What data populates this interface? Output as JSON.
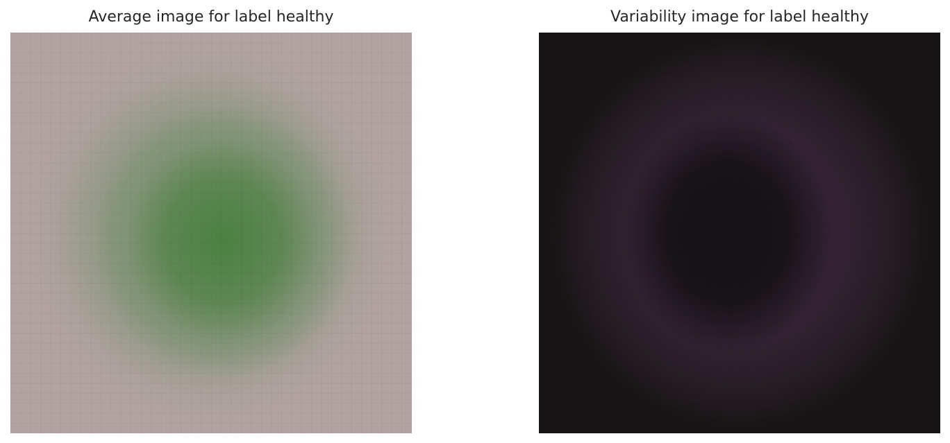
{
  "panels": {
    "left": {
      "title": "Average image for label healthy"
    },
    "right": {
      "title": "Variability image for label healthy"
    }
  },
  "colors": {
    "left_background": "#b2a3a2",
    "left_blob": "#4a8040",
    "right_background": "#161414",
    "right_ring": "#362436"
  }
}
